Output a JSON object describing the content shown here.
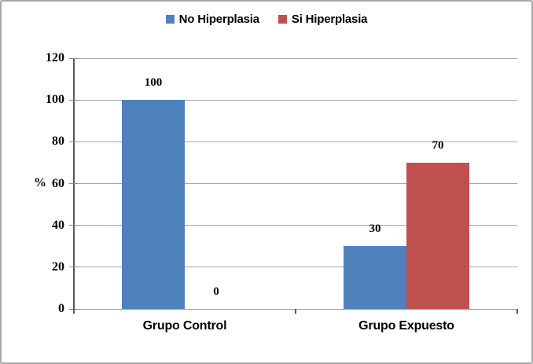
{
  "window": {
    "background_color": "#ffffff",
    "border_color": "#a9a9a9"
  },
  "chart_data": {
    "type": "bar",
    "title": "",
    "categories": [
      "Grupo Control",
      "Grupo Expuesto"
    ],
    "series": [
      {
        "name": "No Hiperplasia",
        "color": "#4F81BD",
        "values": [
          100,
          30
        ]
      },
      {
        "name": "Si Hiperplasia",
        "color": "#C0504D",
        "values": [
          0,
          70
        ]
      }
    ],
    "data_labels_visible": true,
    "xlabel": "",
    "ylabel": "%",
    "ylim": [
      0,
      120
    ],
    "yticks": [
      0,
      20,
      40,
      60,
      80,
      100,
      120
    ],
    "grid": "horizontal",
    "gridline_color": "#a6a6a6",
    "axis_color": "#595959",
    "tick_color": "#8c8c8c",
    "legend_position": "top"
  }
}
